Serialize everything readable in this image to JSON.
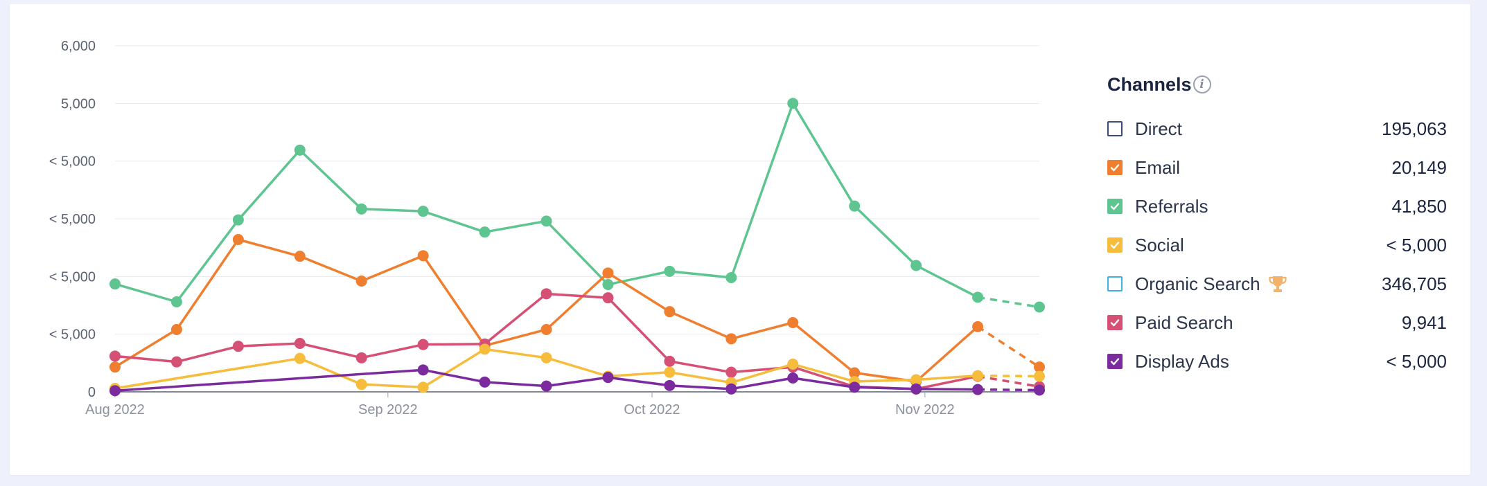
{
  "legend": {
    "title": "Channels",
    "info_icon": "info-icon",
    "items": [
      {
        "name": "Direct",
        "value": "195,063",
        "color": "#3d4a7a",
        "checked": false,
        "icon": ""
      },
      {
        "name": "Email",
        "value": "20,149",
        "color": "#ef7e2f",
        "checked": true,
        "icon": ""
      },
      {
        "name": "Referrals",
        "value": "41,850",
        "color": "#5ec591",
        "checked": true,
        "icon": ""
      },
      {
        "name": "Social",
        "value": "< 5,000",
        "color": "#f6bd3d",
        "checked": true,
        "icon": ""
      },
      {
        "name": "Organic Search",
        "value": "346,705",
        "color": "#3fb1e3",
        "checked": false,
        "icon": "trophy-icon"
      },
      {
        "name": "Paid Search",
        "value": "9,941",
        "color": "#d64f74",
        "checked": true,
        "icon": ""
      },
      {
        "name": "Display Ads",
        "value": "< 5,000",
        "color": "#7b2b9e",
        "checked": true,
        "icon": ""
      }
    ]
  },
  "chart_data": {
    "type": "line",
    "title": "",
    "xlabel": "",
    "ylabel": "",
    "ylim": [
      0,
      6000
    ],
    "y_ticks": [
      {
        "value": 0,
        "label": "0"
      },
      {
        "value": 1000,
        "label": "< 5,000"
      },
      {
        "value": 2000,
        "label": "< 5,000"
      },
      {
        "value": 3000,
        "label": "< 5,000"
      },
      {
        "value": 4000,
        "label": "< 5,000"
      },
      {
        "value": 5000,
        "label": "5,000"
      },
      {
        "value": 6000,
        "label": "6,000"
      }
    ],
    "x_ticks": [
      {
        "date": "2022-08-01",
        "label": "Aug 2022"
      },
      {
        "date": "2022-09-01",
        "label": "Sep 2022"
      },
      {
        "date": "2022-10-01",
        "label": "Oct 2022"
      },
      {
        "date": "2022-11-01",
        "label": "Nov 2022"
      }
    ],
    "x": [
      "2022-08-01",
      "2022-08-08",
      "2022-08-15",
      "2022-08-22",
      "2022-08-29",
      "2022-09-05",
      "2022-09-12",
      "2022-09-19",
      "2022-09-26",
      "2022-10-03",
      "2022-10-10",
      "2022-10-17",
      "2022-10-24",
      "2022-10-31",
      "2022-11-07",
      "2022-11-14"
    ],
    "projected_from_index": 14,
    "grid": true,
    "series": [
      {
        "name": "Referrals",
        "color": "#5ec591",
        "values": [
          1870,
          1560,
          2980,
          4190,
          3170,
          3130,
          2770,
          2960,
          1860,
          2090,
          1980,
          5000,
          3220,
          2190,
          1640,
          1470
        ]
      },
      {
        "name": "Email",
        "color": "#ef7e2f",
        "values": [
          430,
          1080,
          2640,
          2350,
          1920,
          2360,
          800,
          1080,
          2060,
          1390,
          920,
          1200,
          330,
          180,
          1130,
          430
        ]
      },
      {
        "name": "Paid Search",
        "color": "#d64f74",
        "values": [
          620,
          520,
          790,
          840,
          590,
          820,
          830,
          1700,
          1630,
          530,
          340,
          430,
          90,
          50,
          270,
          90
        ]
      },
      {
        "name": "Social",
        "color": "#f6bd3d",
        "values": [
          60,
          null,
          null,
          580,
          130,
          80,
          740,
          590,
          270,
          340,
          160,
          480,
          180,
          210,
          280,
          270
        ]
      },
      {
        "name": "Display Ads",
        "color": "#7b2b9e",
        "values": [
          20,
          null,
          null,
          null,
          null,
          380,
          170,
          100,
          250,
          110,
          50,
          240,
          80,
          50,
          40,
          30
        ]
      }
    ]
  }
}
